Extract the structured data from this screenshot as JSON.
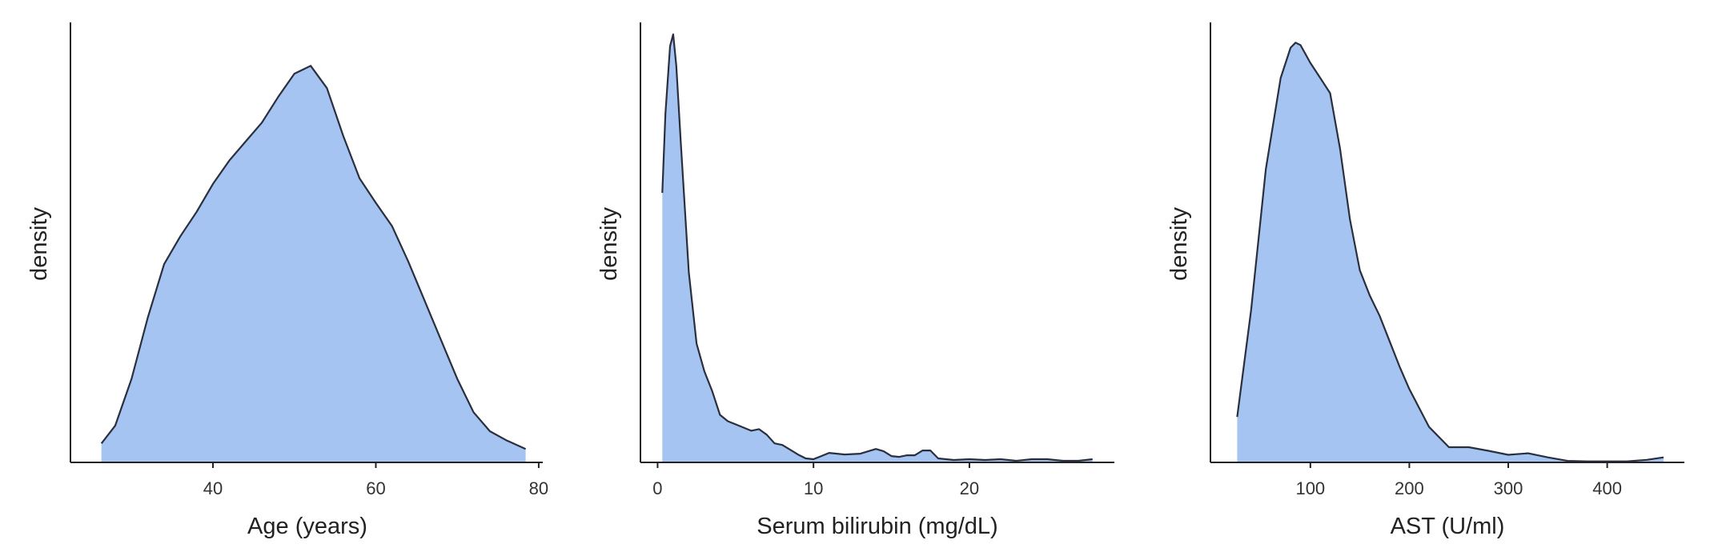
{
  "chart_data": [
    {
      "type": "area",
      "chart_kind": "density",
      "xlabel": "Age (years)",
      "ylabel": "density",
      "xlim": [
        22.5,
        80.5
      ],
      "xticks": [
        40,
        60,
        80
      ],
      "ylim": [
        0,
        0.0395
      ],
      "fill_color": "#a6c4f1",
      "line_color": "#2a2f3d",
      "x": [
        26.3,
        28,
        30,
        32,
        34,
        36,
        38,
        40,
        42,
        44,
        46,
        48,
        50,
        52,
        54,
        56,
        58,
        60,
        62,
        64,
        66,
        68,
        70,
        72,
        74,
        76,
        78.4
      ],
      "y": [
        0.0017,
        0.0033,
        0.0075,
        0.013,
        0.0178,
        0.0203,
        0.0225,
        0.025,
        0.0271,
        0.0288,
        0.0305,
        0.0328,
        0.0349,
        0.0356,
        0.0336,
        0.0293,
        0.0255,
        0.0233,
        0.0212,
        0.018,
        0.0145,
        0.011,
        0.0075,
        0.0045,
        0.0028,
        0.002,
        0.0012
      ]
    },
    {
      "type": "area",
      "chart_kind": "density",
      "xlabel": "Serum bilirubin (mg/dL)",
      "ylabel": "density",
      "xlim": [
        -1.1,
        29.3
      ],
      "xticks": [
        0,
        10,
        20
      ],
      "ylim": [
        0,
        0.555
      ],
      "fill_color": "#a6c4f1",
      "line_color": "#2a2f3d",
      "x": [
        0.3,
        0.5,
        0.8,
        1.0,
        1.2,
        1.5,
        2.0,
        2.5,
        3.0,
        3.5,
        4.0,
        4.5,
        5.0,
        6.0,
        6.5,
        7.0,
        7.5,
        8.0,
        8.5,
        9.0,
        9.5,
        10.0,
        10.5,
        11.0,
        11.5,
        12.0,
        13.0,
        14.0,
        14.5,
        15.0,
        15.5,
        16.0,
        16.5,
        17.0,
        17.5,
        18.0,
        19.0,
        20.0,
        21.0,
        22.0,
        23.0,
        24.0,
        25.0,
        26.0,
        27.0,
        27.9
      ],
      "y": [
        0.34,
        0.44,
        0.525,
        0.54,
        0.5,
        0.4,
        0.24,
        0.15,
        0.115,
        0.09,
        0.06,
        0.052,
        0.048,
        0.04,
        0.042,
        0.035,
        0.024,
        0.022,
        0.016,
        0.01,
        0.005,
        0.004,
        0.008,
        0.012,
        0.011,
        0.01,
        0.011,
        0.017,
        0.014,
        0.008,
        0.007,
        0.009,
        0.009,
        0.015,
        0.015,
        0.005,
        0.003,
        0.004,
        0.003,
        0.004,
        0.002,
        0.004,
        0.004,
        0.002,
        0.002,
        0.004
      ]
    },
    {
      "type": "area",
      "chart_kind": "density",
      "xlabel": "AST (U/ml)",
      "ylabel": "density",
      "xlim": [
        -1,
        478
      ],
      "xticks": [
        100,
        200,
        300,
        400
      ],
      "ylim": [
        0,
        0.0087
      ],
      "fill_color": "#a6c4f1",
      "line_color": "#2a2f3d",
      "x": [
        26,
        40,
        55,
        70,
        80,
        85,
        90,
        100,
        110,
        120,
        130,
        140,
        150,
        160,
        170,
        180,
        190,
        200,
        220,
        240,
        260,
        280,
        300,
        320,
        340,
        360,
        380,
        400,
        420,
        440,
        457
      ],
      "y": [
        0.0009,
        0.003,
        0.0058,
        0.0076,
        0.0082,
        0.0083,
        0.00825,
        0.0079,
        0.0076,
        0.0073,
        0.0062,
        0.0048,
        0.0038,
        0.0033,
        0.0029,
        0.0024,
        0.0019,
        0.00145,
        0.0007,
        0.0003,
        0.0003,
        0.00023,
        0.00015,
        0.00018,
        0.0001,
        3e-05,
        2e-05,
        2e-05,
        2e-05,
        5e-05,
        0.0001
      ]
    }
  ]
}
